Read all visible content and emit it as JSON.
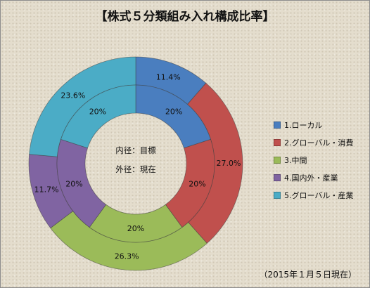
{
  "title": "【株式５分類組み入れ構成比率】",
  "center_labels": [
    "内径：目標",
    "外径：現在"
  ],
  "footnote": "（2015年１月５日現在）",
  "chart_data": {
    "type": "doughnut",
    "title": "【株式５分類組み入れ構成比率】",
    "categories": [
      "1.ローカル",
      "2.グローバル・消費",
      "3.中間",
      "4.国内外・産業",
      "5.グローバル・産業"
    ],
    "colors": [
      "#4a7ebf",
      "#c0504d",
      "#9bbb59",
      "#8064a2",
      "#4bacc6"
    ],
    "series": [
      {
        "name": "外径：現在",
        "values": [
          11.4,
          27.0,
          26.3,
          11.7,
          23.6
        ],
        "labels": [
          "11.4%",
          "27.0%",
          "26.3%",
          "11.7%",
          "23.6%"
        ]
      },
      {
        "name": "内径：目標",
        "values": [
          20,
          20,
          20,
          20,
          20
        ],
        "labels": [
          "20%",
          "20%",
          "20%",
          "20%",
          "20%"
        ]
      }
    ],
    "legend_position": "right",
    "legend": [
      "1.ローカル",
      "2.グローバル・消費",
      "3.中間",
      "4.国内外・産業",
      "5.グローバル・産業"
    ]
  }
}
